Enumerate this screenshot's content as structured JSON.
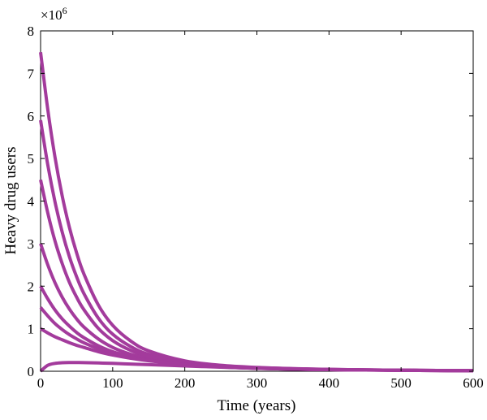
{
  "chart_data": {
    "type": "line",
    "xlabel": "Time (years)",
    "ylabel": "Heavy drug users",
    "y_multiplier_label": "×10",
    "y_multiplier_exponent": "6",
    "xlim": [
      0,
      600
    ],
    "ylim": [
      0,
      8000000
    ],
    "x_ticks": [
      0,
      100,
      200,
      300,
      400,
      500,
      600
    ],
    "y_ticks": [
      0,
      1000000,
      2000000,
      3000000,
      4000000,
      5000000,
      6000000,
      7000000,
      8000000
    ],
    "x_tick_labels": [
      "0",
      "100",
      "200",
      "300",
      "400",
      "500",
      "600"
    ],
    "y_tick_labels": [
      "0",
      "1",
      "2",
      "3",
      "4",
      "5",
      "6",
      "7",
      "8"
    ],
    "grid": false,
    "line_color": "#a33b9c",
    "x": [
      0,
      10,
      20,
      30,
      40,
      50,
      60,
      80,
      100,
      125,
      150,
      200,
      250,
      300,
      350,
      400,
      450,
      500,
      550,
      600
    ],
    "series": [
      {
        "values": [
          7500000,
          6150000,
          5030000,
          4120000,
          3380000,
          2780000,
          2290000,
          1560000,
          1080000,
          710000,
          480000,
          245000,
          140000,
          90000,
          62000,
          45000,
          34000,
          26000,
          20000,
          16000
        ]
      },
      {
        "values": [
          5900000,
          4850000,
          3980000,
          3270000,
          2690000,
          2220000,
          1830000,
          1250000,
          870000,
          580000,
          400000,
          215000,
          130000,
          85000,
          60000,
          44000,
          33000,
          25000,
          19000,
          15000
        ]
      },
      {
        "values": [
          4500000,
          3720000,
          3060000,
          2530000,
          2090000,
          1740000,
          1450000,
          1010000,
          720000,
          490000,
          350000,
          195000,
          120000,
          80000,
          57000,
          42000,
          32000,
          24000,
          18000,
          14000
        ]
      },
      {
        "values": [
          3000000,
          2500000,
          2080000,
          1740000,
          1460000,
          1230000,
          1040000,
          760000,
          560000,
          400000,
          295000,
          175000,
          110000,
          75000,
          54000,
          40000,
          31000,
          23000,
          18000,
          14000
        ]
      },
      {
        "values": [
          2000000,
          1700000,
          1440000,
          1230000,
          1060000,
          910000,
          790000,
          600000,
          460000,
          345000,
          265000,
          162000,
          105000,
          72000,
          52000,
          39000,
          30000,
          23000,
          17000,
          13000
        ]
      },
      {
        "values": [
          1500000,
          1300000,
          1120000,
          980000,
          860000,
          760000,
          670000,
          530000,
          420000,
          325000,
          255000,
          158000,
          103000,
          71000,
          51000,
          38000,
          29000,
          22000,
          17000,
          13000
        ]
      },
      {
        "values": [
          1000000,
          900000,
          810000,
          740000,
          670000,
          610000,
          560000,
          460000,
          380000,
          305000,
          245000,
          155000,
          101000,
          70000,
          50000,
          38000,
          29000,
          22000,
          17000,
          13000
        ]
      },
      {
        "values": [
          0,
          140000,
          185000,
          200000,
          205000,
          205000,
          202000,
          195000,
          185000,
          170000,
          155000,
          125000,
          95000,
          70000,
          50000,
          38000,
          29000,
          22000,
          17000,
          13000
        ]
      }
    ]
  }
}
